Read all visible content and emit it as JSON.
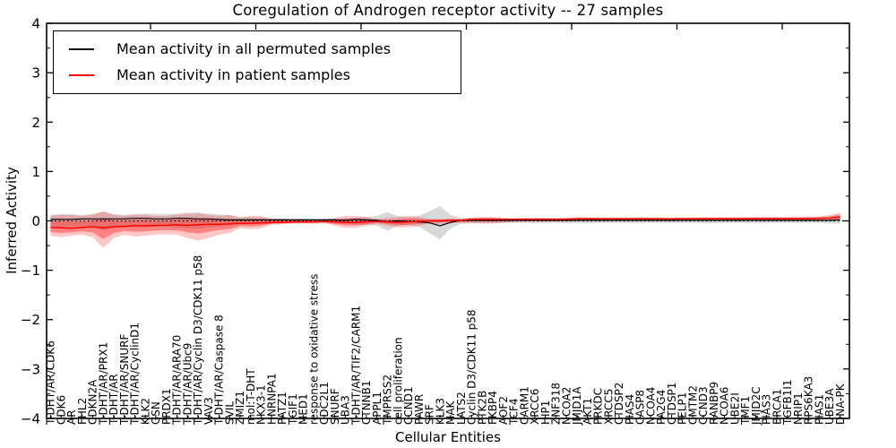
{
  "figure": {
    "title": "Coregulation of Androgen receptor activity -- 27 samples",
    "xlabel": "Cellular Entities",
    "ylabel": "Inferred Activity",
    "background": "#ffffff"
  },
  "legend": {
    "items": [
      {
        "label": "Mean activity in all permuted samples",
        "color": "#000000"
      },
      {
        "label": "Mean activity in patient samples",
        "color": "#ff0000"
      }
    ]
  },
  "chart_data": {
    "type": "line",
    "title": "Coregulation of Androgen receptor activity -- 27 samples",
    "xlabel": "Cellular Entities",
    "ylabel": "Inferred Activity",
    "ylim": [
      -4,
      4
    ],
    "ytick_values": [
      4,
      3,
      2,
      1,
      0,
      -1,
      -2,
      -3,
      -4
    ],
    "ytick_labels": [
      "4",
      "3",
      "2",
      "1",
      "0",
      "−1",
      "−2",
      "−3",
      "−4"
    ],
    "grid": false,
    "legend_position": "upper left",
    "zero_line": {
      "color": "#000000",
      "style": "dotted",
      "y": 0
    },
    "categories": [
      "T-DHT/AR/CDK6",
      "CDK6",
      "AR",
      "FHL2",
      "CDKN2A",
      "T-DHT/AR/PRX1",
      "T-DHT/AR",
      "T-DHT/AR/SNURF",
      "T-DHT/AR/CyclinD1",
      "KLK2",
      "GSN",
      "PRDX1",
      "T-DHT/AR/ARA70",
      "T-DHT/AR/Ubc9",
      "T-DHT/AR/Cyclin D3/CDK11 p58",
      "VAV3",
      "T-DHT/AR/Caspase 8",
      "SVIL",
      "ZMIZ1",
      "mol:T-DHT",
      "NKX3-1",
      "HNRNPA1",
      "PATZ1",
      "TGIF1",
      "MED1",
      "response to oxidative stress",
      "CDC2L1",
      "SNURF",
      "UBA3",
      "T-DHT/AR/TIF2/CARM1",
      "CTNNB1",
      "APPL1",
      "TMPRSS2",
      "cell proliferation",
      "CCND1",
      "PAWR",
      "SRF",
      "KLK3",
      "MAK",
      "LATS2",
      "Cyclin D3/CDK11 p58",
      "PTK2B",
      "FKBP4",
      "AOF2",
      "TCF4",
      "CARM1",
      "XRCC6",
      "HIP1",
      "ZNF318",
      "NCOA2",
      "JMJD1A",
      "AKT1",
      "PRKDC",
      "XRCC5",
      "CTDSP2",
      "PIAS4",
      "CASP8",
      "NCOA4",
      "PA2G4",
      "CTDSP1",
      "PELP1",
      "CMTM2",
      "CCND3",
      "RANBP9",
      "NCOA6",
      "UBE2I",
      "TMF1",
      "JMJD2C",
      "PIAS3",
      "BRCA1",
      "TGFB1I1",
      "NRIP1",
      "RPS6KA3",
      "PIAS1",
      "UBE3A",
      "DNA-PK"
    ],
    "series": [
      {
        "name": "Mean activity in all permuted samples",
        "color": "#000000",
        "values": [
          0.03,
          0.03,
          0.03,
          0.04,
          0.04,
          0.04,
          0.04,
          0.04,
          0.05,
          0.05,
          0.04,
          0.04,
          0.05,
          0.05,
          0.04,
          0.04,
          0.03,
          0.02,
          0.02,
          0.02,
          0.02,
          0.02,
          0.02,
          0.02,
          0.02,
          0.02,
          0.02,
          0.02,
          0.01,
          0.03,
          0.02,
          0.01,
          -0.02,
          0,
          -0.01,
          -0.02,
          -0.04,
          -0.1,
          -0.03,
          0.01,
          0.01,
          0.01,
          0.01,
          0.01,
          0.01,
          0.01,
          0.01,
          0.01,
          0.01,
          0.01,
          0.01,
          0.01,
          0.01,
          0.01,
          0.01,
          0.01,
          0.01,
          0.01,
          0.01,
          0.01,
          0.01,
          0.01,
          0.01,
          0.01,
          0.01,
          0.01,
          0.01,
          0.01,
          0.01,
          0.01,
          0.01,
          0.01,
          0.01,
          0.01,
          0.01,
          0.02
        ]
      },
      {
        "name": "Mean activity in patient samples",
        "color": "#ff0000",
        "values": [
          -0.13,
          -0.14,
          -0.15,
          -0.13,
          -0.12,
          -0.14,
          -0.12,
          -0.11,
          -0.1,
          -0.1,
          -0.09,
          -0.09,
          -0.08,
          -0.09,
          -0.08,
          -0.07,
          -0.07,
          -0.06,
          -0.05,
          -0.05,
          -0.04,
          -0.03,
          -0.03,
          -0.02,
          -0.02,
          -0.02,
          -0.01,
          -0.02,
          -0.03,
          -0.03,
          -0.02,
          -0.01,
          -0.02,
          -0.03,
          -0.02,
          -0.01,
          0,
          0,
          0.01,
          0.01,
          0.03,
          0.03,
          0.03,
          0.03,
          0.03,
          0.03,
          0.03,
          0.03,
          0.03,
          0.03,
          0.04,
          0.04,
          0.04,
          0.04,
          0.04,
          0.04,
          0.04,
          0.04,
          0.04,
          0.04,
          0.045,
          0.045,
          0.045,
          0.045,
          0.045,
          0.045,
          0.045,
          0.045,
          0.045,
          0.045,
          0.045,
          0.045,
          0.045,
          0.05,
          0.055,
          0.08
        ]
      }
    ],
    "bands": [
      {
        "name": "permuted-samples-band",
        "color": "#808080",
        "opacity": 0.3,
        "upper": [
          0.12,
          0.14,
          0.13,
          0.12,
          0.14,
          0.18,
          0.14,
          0.12,
          0.14,
          0.15,
          0.14,
          0.13,
          0.15,
          0.17,
          0.17,
          0.15,
          0.13,
          0.12,
          0.08,
          0.08,
          0.07,
          0.05,
          0.05,
          0.04,
          0.04,
          0.04,
          0.04,
          0.05,
          0.06,
          0.07,
          0.08,
          0.1,
          0.18,
          0.1,
          0.08,
          0.1,
          0.2,
          0.3,
          0.12,
          0.06,
          0.06,
          0.06,
          0.06,
          0.05,
          0.05,
          0.05,
          0.06,
          0.06,
          0.05,
          0.06,
          0.07,
          0.07,
          0.06,
          0.06,
          0.06,
          0.06,
          0.07,
          0.06,
          0.06,
          0.05,
          0.05,
          0.05,
          0.06,
          0.06,
          0.05,
          0.05,
          0.05,
          0.06,
          0.05,
          0.05,
          0.05,
          0.05,
          0.05,
          0.05,
          0.06,
          0.08
        ],
        "lower": [
          -0.1,
          -0.12,
          -0.11,
          -0.1,
          -0.12,
          -0.2,
          -0.14,
          -0.1,
          -0.12,
          -0.13,
          -0.12,
          -0.11,
          -0.13,
          -0.15,
          -0.16,
          -0.13,
          -0.11,
          -0.1,
          -0.07,
          -0.07,
          -0.06,
          -0.05,
          -0.04,
          -0.04,
          -0.04,
          -0.04,
          -0.04,
          -0.05,
          -0.06,
          -0.07,
          -0.08,
          -0.1,
          -0.2,
          -0.1,
          -0.08,
          -0.12,
          -0.25,
          -0.38,
          -0.15,
          -0.06,
          -0.05,
          -0.05,
          -0.05,
          -0.04,
          -0.04,
          -0.04,
          -0.05,
          -0.05,
          -0.04,
          -0.05,
          -0.05,
          -0.05,
          -0.04,
          -0.04,
          -0.04,
          -0.04,
          -0.05,
          -0.04,
          -0.04,
          -0.04,
          -0.04,
          -0.04,
          -0.05,
          -0.05,
          -0.04,
          -0.04,
          -0.04,
          -0.05,
          -0.04,
          -0.04,
          -0.04,
          -0.04,
          -0.04,
          -0.04,
          -0.05,
          -0.06
        ]
      },
      {
        "name": "patient-samples-band",
        "color": "#ff0000",
        "opacity": 0.22,
        "inner_band_opacity": 0.35,
        "upper": [
          0.1,
          0.12,
          0.12,
          0.1,
          0.12,
          0.2,
          0.12,
          0.1,
          0.12,
          0.12,
          0.1,
          0.1,
          0.12,
          0.14,
          0.15,
          0.12,
          0.1,
          0.12,
          0.06,
          0.1,
          0.1,
          0.04,
          0.03,
          0.03,
          0.03,
          0.03,
          0.02,
          0.06,
          0.1,
          0.1,
          0.08,
          0.04,
          0.06,
          0.08,
          0.1,
          0.08,
          0.04,
          0.04,
          0.05,
          0.04,
          0.06,
          0.08,
          0.08,
          0.06,
          0.05,
          0.06,
          0.06,
          0.06,
          0.06,
          0.06,
          0.07,
          0.07,
          0.07,
          0.07,
          0.07,
          0.07,
          0.07,
          0.07,
          0.07,
          0.06,
          0.06,
          0.06,
          0.07,
          0.07,
          0.07,
          0.07,
          0.07,
          0.08,
          0.08,
          0.08,
          0.08,
          0.08,
          0.09,
          0.09,
          0.12,
          0.17
        ],
        "lower": [
          -0.3,
          -0.33,
          -0.3,
          -0.28,
          -0.33,
          -0.55,
          -0.35,
          -0.28,
          -0.32,
          -0.3,
          -0.28,
          -0.27,
          -0.28,
          -0.35,
          -0.4,
          -0.35,
          -0.28,
          -0.25,
          -0.15,
          -0.17,
          -0.15,
          -0.08,
          -0.07,
          -0.06,
          -0.06,
          -0.06,
          -0.05,
          -0.1,
          -0.14,
          -0.14,
          -0.1,
          -0.06,
          -0.1,
          -0.13,
          -0.13,
          -0.1,
          -0.06,
          -0.06,
          -0.05,
          -0.04,
          -0.04,
          -0.05,
          -0.05,
          -0.04,
          -0.02,
          -0.01,
          -0.01,
          -0.01,
          -0.01,
          -0.01,
          0,
          0,
          0,
          0,
          0,
          0,
          0,
          0,
          0,
          0,
          0.01,
          0.01,
          0.01,
          0.01,
          0.01,
          0.01,
          0.01,
          0.01,
          0.01,
          0.01,
          0.01,
          0.01,
          0.02,
          0.02,
          0.02,
          0
        ]
      }
    ]
  }
}
